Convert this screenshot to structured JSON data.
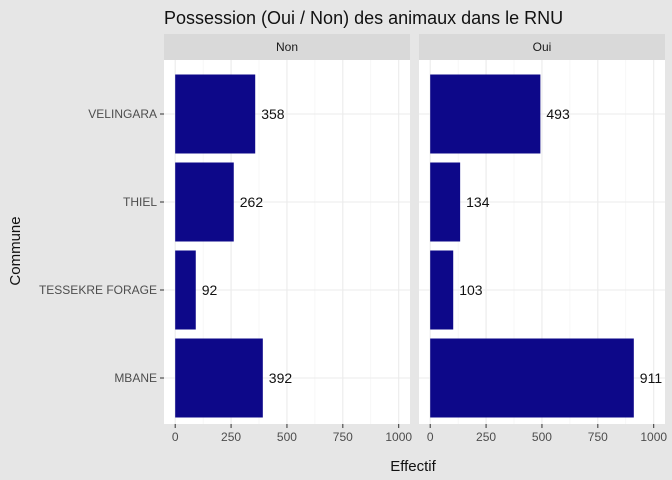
{
  "chart_data": {
    "type": "bar",
    "orientation": "horizontal",
    "title": "Possession (Oui / Non) des animaux dans le RNU",
    "xlabel": "Effectif",
    "ylabel": "Commune",
    "categories": [
      "VELINGARA",
      "THIEL",
      "TESSEKRE FORAGE",
      "MBANE"
    ],
    "facets": [
      {
        "label": "Non",
        "values": [
          358,
          262,
          92,
          392
        ]
      },
      {
        "label": "Oui",
        "values": [
          493,
          134,
          103,
          911
        ]
      }
    ],
    "xlim": [
      0,
      1000
    ],
    "x_ticks": [
      0,
      250,
      500,
      750,
      1000
    ],
    "grid": true,
    "bar_color": "#0d0889",
    "panel_background": "#ffffff",
    "strip_background": "#d9d9d9",
    "plot_background": "#e6e6e6"
  }
}
